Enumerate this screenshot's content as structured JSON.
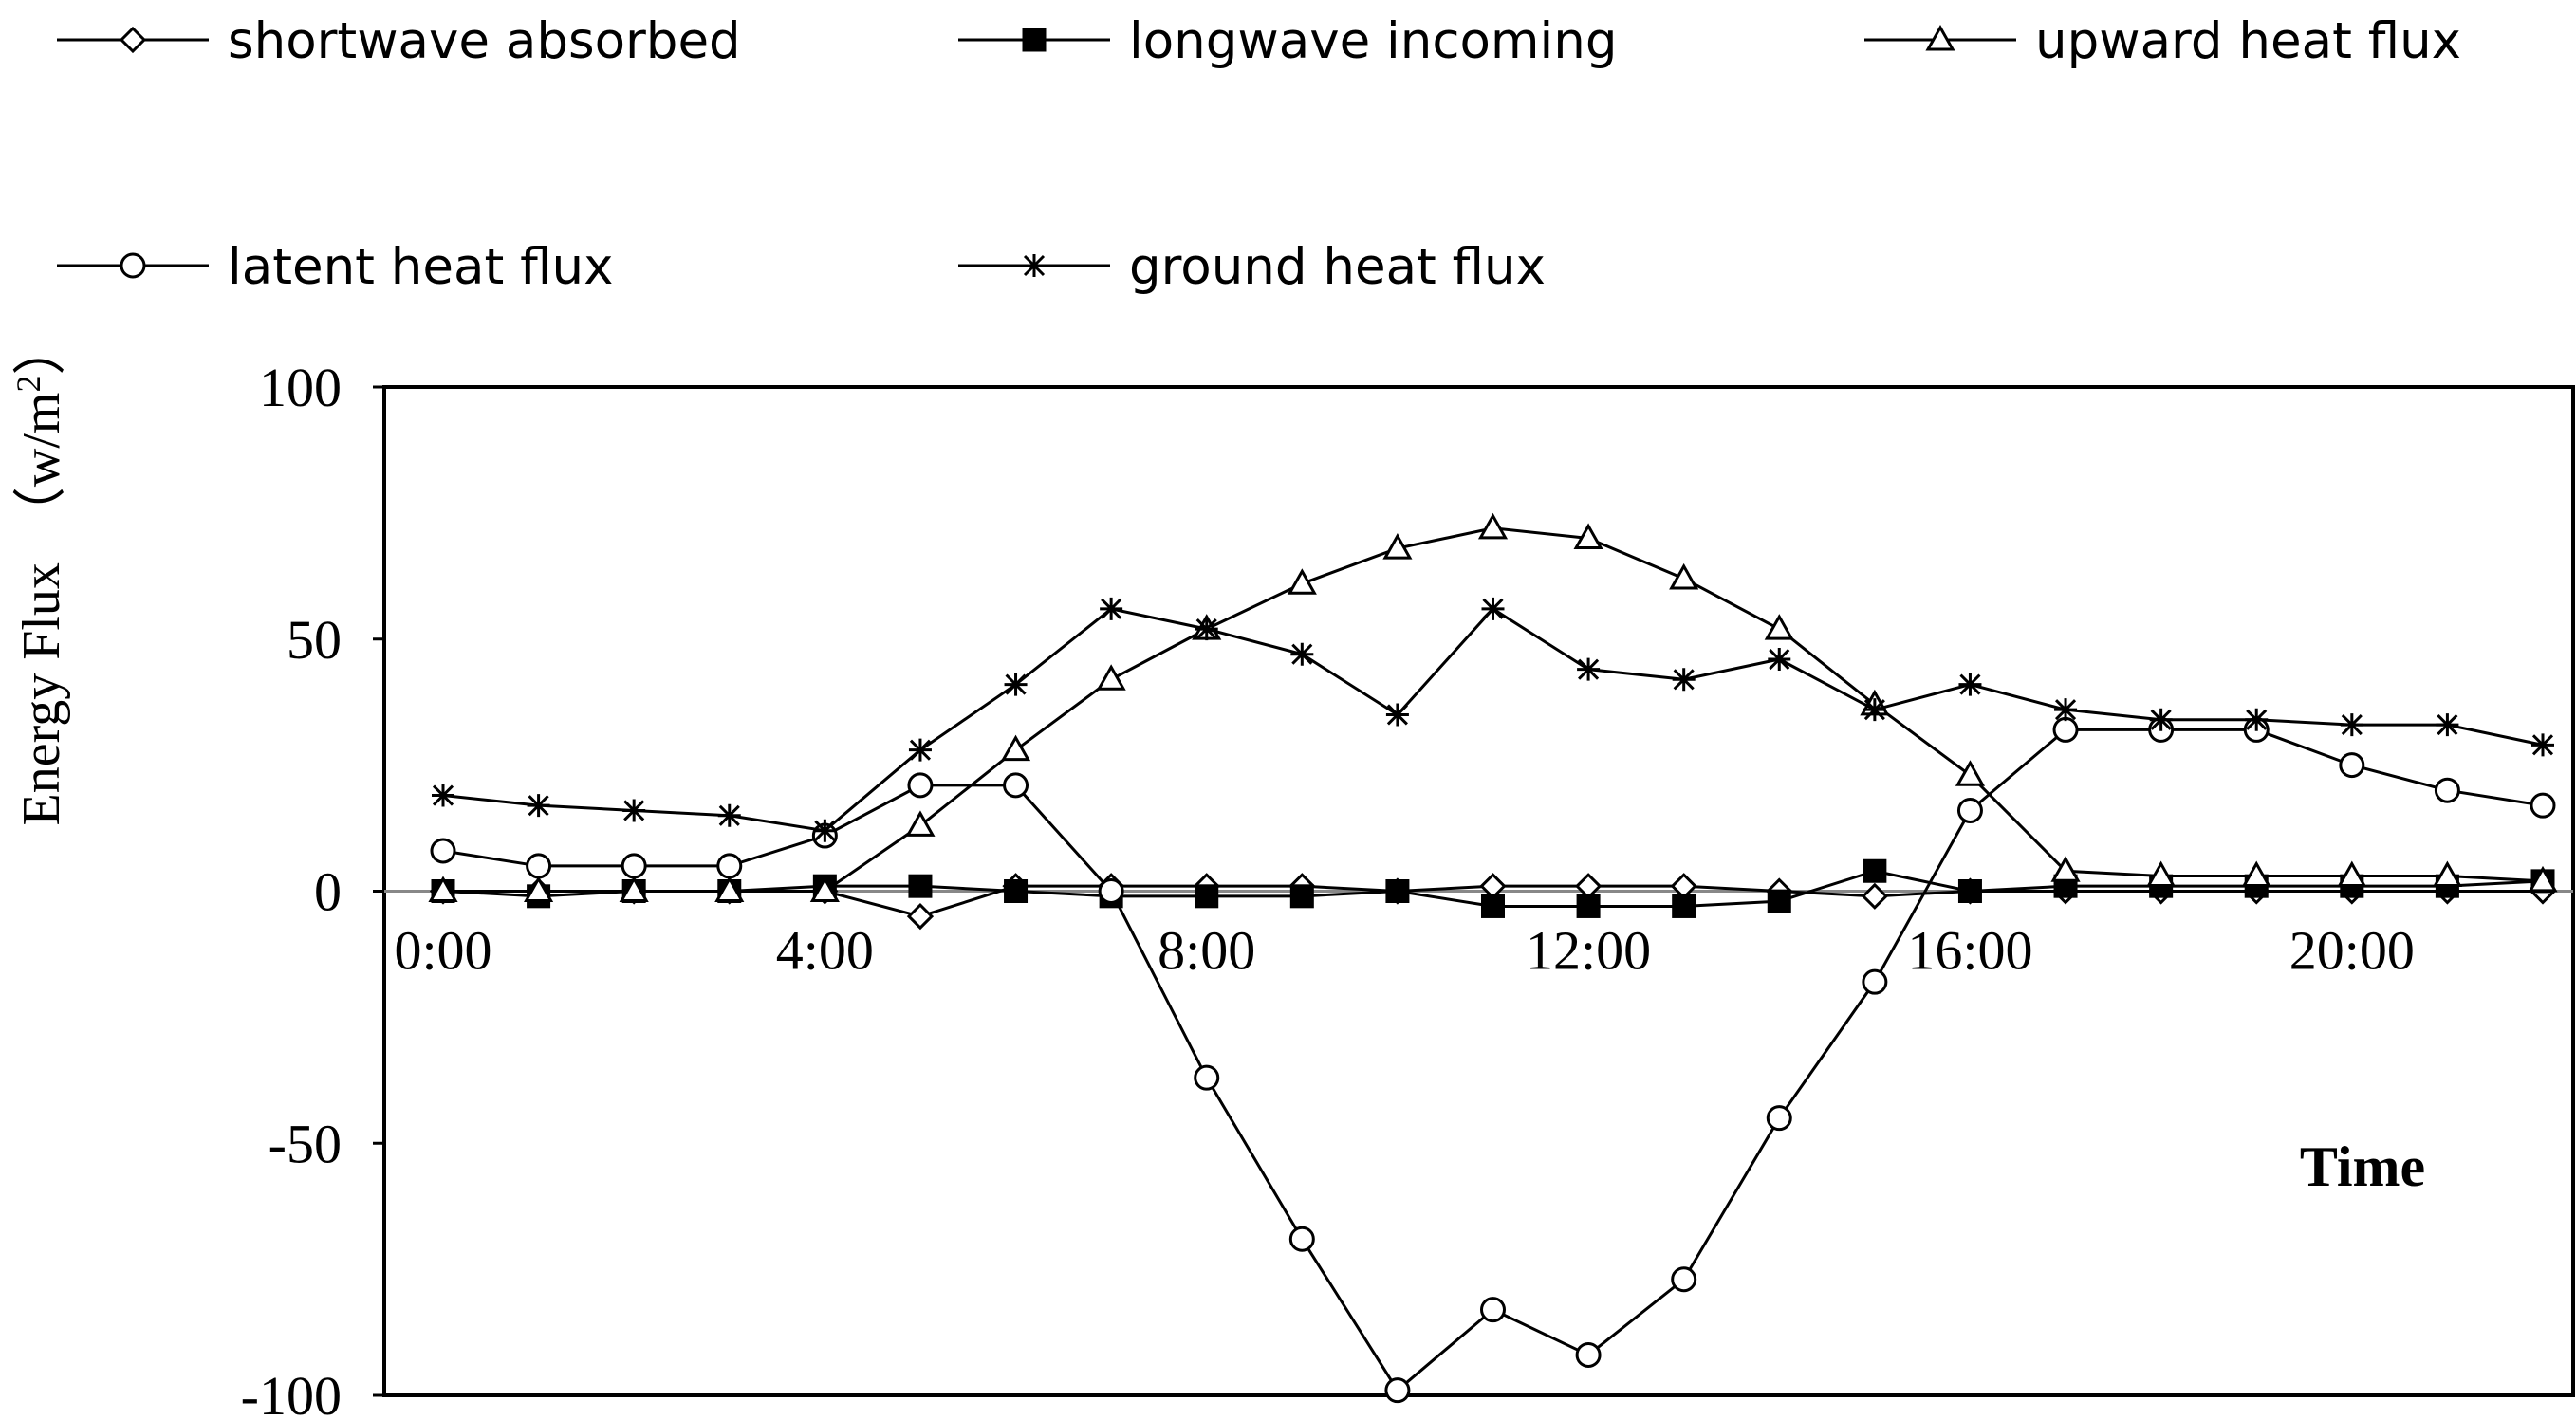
{
  "chart_data": {
    "type": "line",
    "ylabel_main": "Energy Flux",
    "ylabel_unit_prefix": "（w/m",
    "ylabel_unit_sup": "2",
    "ylabel_unit_suffix": "）",
    "xlabel": "Time",
    "ylim": [
      -100,
      100
    ],
    "yticks": [
      -100,
      -50,
      0,
      50,
      100
    ],
    "xlim": [
      0,
      22
    ],
    "xtick_values": [
      0,
      4,
      8,
      12,
      16,
      20
    ],
    "xtick_labels": [
      "0:00",
      "4:00",
      "8:00",
      "12:00",
      "16:00",
      "20:00"
    ],
    "x": [
      0,
      1,
      2,
      3,
      4,
      5,
      6,
      7,
      8,
      9,
      10,
      11,
      12,
      13,
      14,
      15,
      16,
      17,
      18,
      19,
      20,
      21,
      22
    ],
    "legend_position": "top",
    "series": [
      {
        "name": "shortwave absorbed",
        "marker": "diamond-open",
        "values": [
          0,
          0,
          0,
          0,
          0,
          -5,
          1,
          1,
          1,
          1,
          0,
          1,
          1,
          1,
          0,
          -1,
          0,
          0,
          0,
          0,
          0,
          0,
          0
        ]
      },
      {
        "name": "longwave incoming",
        "marker": "square-filled",
        "values": [
          0,
          -1,
          0,
          0,
          1,
          1,
          0,
          -1,
          -1,
          -1,
          0,
          -3,
          -3,
          -3,
          -2,
          4,
          0,
          1,
          1,
          1,
          1,
          1,
          2
        ]
      },
      {
        "name": "upward heat flux",
        "marker": "triangle-open",
        "values": [
          0,
          0,
          0,
          0,
          0,
          13,
          28,
          42,
          52,
          61,
          68,
          72,
          70,
          62,
          52,
          37,
          23,
          4,
          3,
          3,
          3,
          3,
          2
        ]
      },
      {
        "name": "latent heat flux",
        "marker": "circle-open",
        "values": [
          8,
          5,
          5,
          5,
          11,
          21,
          21,
          0,
          -37,
          -69,
          -99,
          -83,
          -92,
          -77,
          -45,
          -18,
          16,
          32,
          32,
          32,
          25,
          20,
          17
        ]
      },
      {
        "name": "ground heat flux",
        "marker": "star",
        "values": [
          19,
          17,
          16,
          15,
          12,
          28,
          41,
          56,
          52,
          47,
          35,
          56,
          44,
          42,
          46,
          36,
          41,
          36,
          34,
          34,
          33,
          33,
          29
        ]
      }
    ]
  }
}
